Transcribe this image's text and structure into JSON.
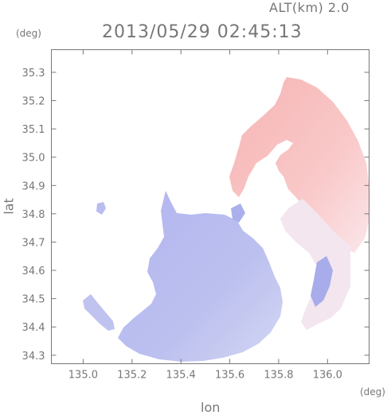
{
  "header": {
    "altitude_label": "ALT(km) 2.0",
    "datetime": "2013/05/29 02:45:13"
  },
  "axes": {
    "y_unit": "(deg)",
    "x_unit": "(deg)",
    "x_label": "lon",
    "y_label": "lat",
    "x_ticks": [
      "135.0",
      "135.2",
      "135.4",
      "135.6",
      "135.8",
      "136.0"
    ],
    "y_ticks": [
      "34.3",
      "34.4",
      "34.5",
      "34.6",
      "34.7",
      "34.8",
      "34.9",
      "35.0",
      "35.1",
      "35.2",
      "35.3"
    ],
    "x_range": [
      134.87,
      136.17
    ],
    "y_range": [
      34.27,
      35.38
    ]
  },
  "colors": {
    "positive": "#f7b9b9",
    "negative": "#b4b8f0",
    "axis": "#777777"
  },
  "map_regions": [
    {
      "name": "northeast-positive-region",
      "polarity": "positive"
    },
    {
      "name": "southwest-negative-region",
      "polarity": "negative"
    },
    {
      "name": "northwest-small-echo",
      "polarity": "negative"
    },
    {
      "name": "western-strip-echo",
      "polarity": "negative"
    }
  ]
}
